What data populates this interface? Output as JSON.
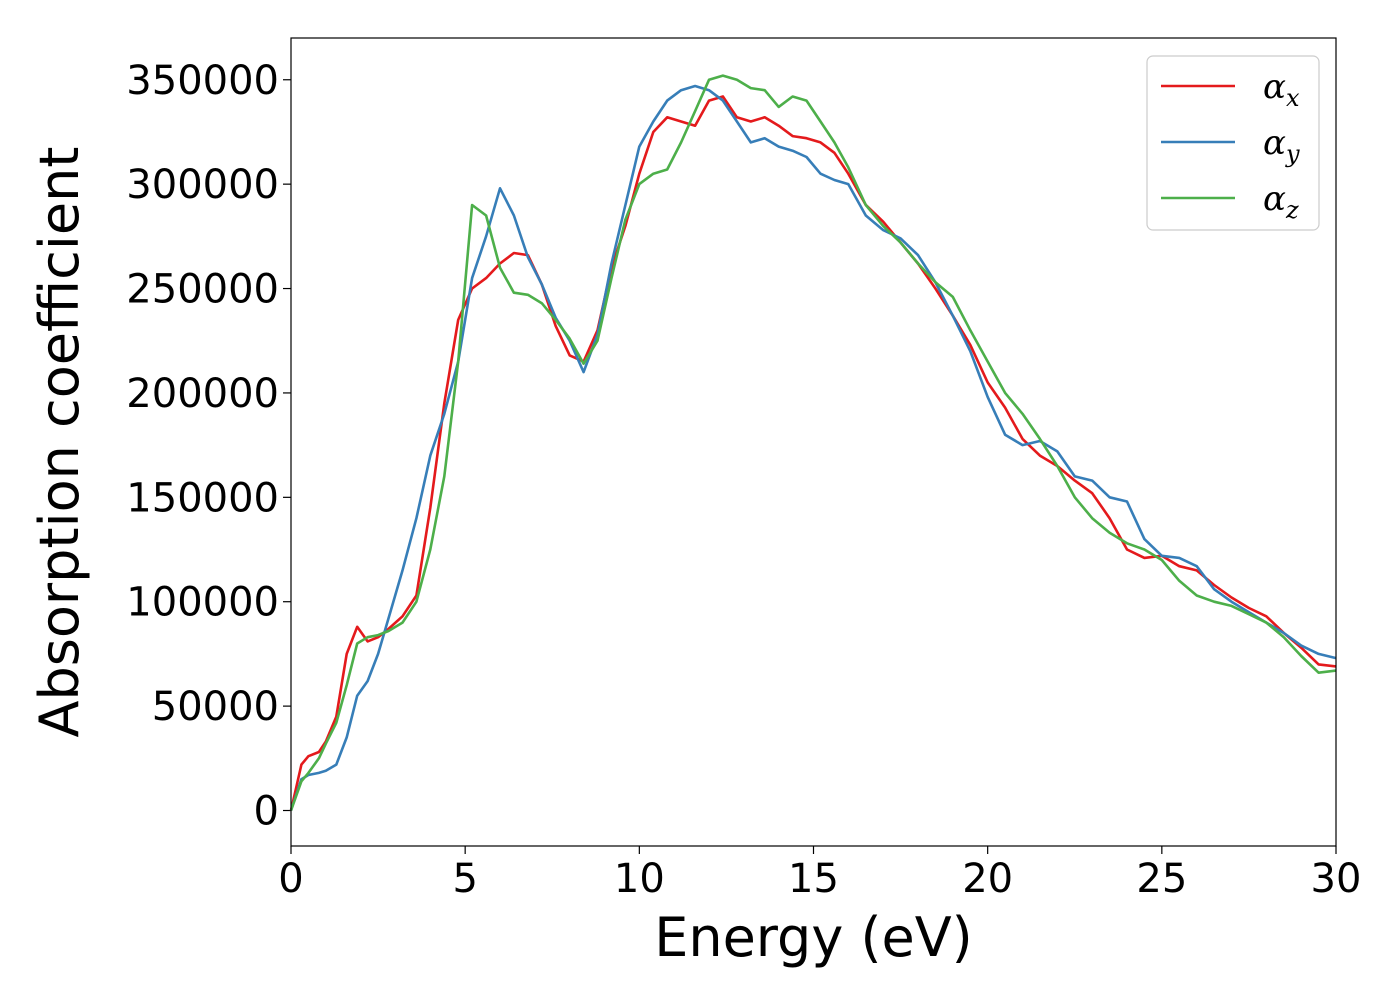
{
  "chart_data": {
    "type": "line",
    "xlabel": "Energy (eV)",
    "ylabel": "Absorption coefficient",
    "xlim": [
      0,
      30
    ],
    "ylim": [
      -17000,
      370000
    ],
    "xticks": [
      0,
      5,
      10,
      15,
      20,
      25,
      30
    ],
    "yticks": [
      0,
      50000,
      100000,
      150000,
      200000,
      250000,
      300000,
      350000
    ],
    "grid": false,
    "legend_position": "top-right",
    "series": [
      {
        "name": "α_x",
        "label_base": "α",
        "label_sub": "x",
        "color": "#e41a1c",
        "x": [
          0,
          0.3,
          0.5,
          0.8,
          1.0,
          1.3,
          1.6,
          1.9,
          2.2,
          2.5,
          2.8,
          3.2,
          3.6,
          4.0,
          4.4,
          4.8,
          5.2,
          5.6,
          6.0,
          6.4,
          6.8,
          7.2,
          7.6,
          8.0,
          8.4,
          8.8,
          9.2,
          9.6,
          10.0,
          10.4,
          10.8,
          11.2,
          11.6,
          12.0,
          12.4,
          12.8,
          13.2,
          13.6,
          14.0,
          14.4,
          14.8,
          15.2,
          15.6,
          16.0,
          16.5,
          17.0,
          17.5,
          18.0,
          18.5,
          19.0,
          19.5,
          20.0,
          20.5,
          21.0,
          21.5,
          22.0,
          22.5,
          23.0,
          23.5,
          24.0,
          24.5,
          25.0,
          25.5,
          26.0,
          26.5,
          27.0,
          27.5,
          28.0,
          28.5,
          29.0,
          29.5,
          30.0
        ],
        "y": [
          0,
          22000,
          26000,
          28000,
          33000,
          45000,
          75000,
          88000,
          81000,
          83000,
          87000,
          93000,
          103000,
          145000,
          195000,
          235000,
          250000,
          255000,
          262000,
          267000,
          266000,
          252000,
          232000,
          218000,
          215000,
          230000,
          260000,
          280000,
          305000,
          325000,
          332000,
          330000,
          328000,
          340000,
          342000,
          332000,
          330000,
          332000,
          328000,
          323000,
          322000,
          320000,
          315000,
          305000,
          290000,
          282000,
          272000,
          262000,
          250000,
          237000,
          223000,
          205000,
          193000,
          178000,
          170000,
          165000,
          158000,
          152000,
          140000,
          125000,
          121000,
          122000,
          117000,
          115000,
          108000,
          102000,
          97000,
          93000,
          85000,
          78000,
          70000,
          69000
        ]
      },
      {
        "name": "α_y",
        "label_base": "α",
        "label_sub": "y",
        "color": "#377eb8",
        "x": [
          0,
          0.3,
          0.5,
          0.8,
          1.0,
          1.3,
          1.6,
          1.9,
          2.2,
          2.5,
          2.8,
          3.2,
          3.6,
          4.0,
          4.4,
          4.8,
          5.2,
          5.6,
          6.0,
          6.4,
          6.8,
          7.2,
          7.6,
          8.0,
          8.4,
          8.8,
          9.2,
          9.6,
          10.0,
          10.4,
          10.8,
          11.2,
          11.6,
          12.0,
          12.4,
          12.8,
          13.2,
          13.6,
          14.0,
          14.4,
          14.8,
          15.2,
          15.6,
          16.0,
          16.5,
          17.0,
          17.5,
          18.0,
          18.5,
          19.0,
          19.5,
          20.0,
          20.5,
          21.0,
          21.5,
          22.0,
          22.5,
          23.0,
          23.5,
          24.0,
          24.5,
          25.0,
          25.5,
          26.0,
          26.5,
          27.0,
          27.5,
          28.0,
          28.5,
          29.0,
          29.5,
          30.0
        ],
        "y": [
          0,
          15000,
          17000,
          18000,
          19000,
          22000,
          35000,
          55000,
          62000,
          75000,
          92000,
          115000,
          140000,
          170000,
          190000,
          215000,
          255000,
          275000,
          298000,
          285000,
          265000,
          252000,
          236000,
          225000,
          210000,
          228000,
          262000,
          290000,
          318000,
          330000,
          340000,
          345000,
          347000,
          345000,
          340000,
          330000,
          320000,
          322000,
          318000,
          316000,
          313000,
          305000,
          302000,
          300000,
          285000,
          278000,
          274000,
          266000,
          253000,
          237000,
          220000,
          198000,
          180000,
          175000,
          177000,
          172000,
          160000,
          158000,
          150000,
          148000,
          130000,
          122000,
          121000,
          117000,
          106000,
          100000,
          95000,
          90000,
          85000,
          79000,
          75000,
          73000
        ]
      },
      {
        "name": "α_z",
        "label_base": "α",
        "label_sub": "z",
        "color": "#4daf4a",
        "x": [
          0,
          0.3,
          0.5,
          0.8,
          1.0,
          1.3,
          1.6,
          1.9,
          2.2,
          2.5,
          2.8,
          3.2,
          3.6,
          4.0,
          4.4,
          4.8,
          5.2,
          5.6,
          6.0,
          6.4,
          6.8,
          7.2,
          7.6,
          8.0,
          8.4,
          8.8,
          9.2,
          9.6,
          10.0,
          10.4,
          10.8,
          11.2,
          11.6,
          12.0,
          12.4,
          12.8,
          13.2,
          13.6,
          14.0,
          14.4,
          14.8,
          15.2,
          15.6,
          16.0,
          16.5,
          17.0,
          17.5,
          18.0,
          18.5,
          19.0,
          19.5,
          20.0,
          20.5,
          21.0,
          21.5,
          22.0,
          22.5,
          23.0,
          23.5,
          24.0,
          24.5,
          25.0,
          25.5,
          26.0,
          26.5,
          27.0,
          27.5,
          28.0,
          28.5,
          29.0,
          29.5,
          30.0
        ],
        "y": [
          0,
          14000,
          18000,
          25000,
          32000,
          42000,
          60000,
          80000,
          83000,
          84000,
          86000,
          90000,
          100000,
          125000,
          160000,
          215000,
          290000,
          285000,
          260000,
          248000,
          247000,
          243000,
          235000,
          226000,
          214000,
          225000,
          255000,
          283000,
          300000,
          305000,
          307000,
          320000,
          335000,
          350000,
          352000,
          350000,
          346000,
          345000,
          337000,
          342000,
          340000,
          330000,
          320000,
          308000,
          290000,
          280000,
          272000,
          262000,
          253000,
          246000,
          230000,
          215000,
          200000,
          190000,
          178000,
          165000,
          150000,
          140000,
          133000,
          128000,
          125000,
          120000,
          110000,
          103000,
          100000,
          98000,
          94000,
          90000,
          83000,
          74000,
          66000,
          67000
        ]
      }
    ]
  }
}
